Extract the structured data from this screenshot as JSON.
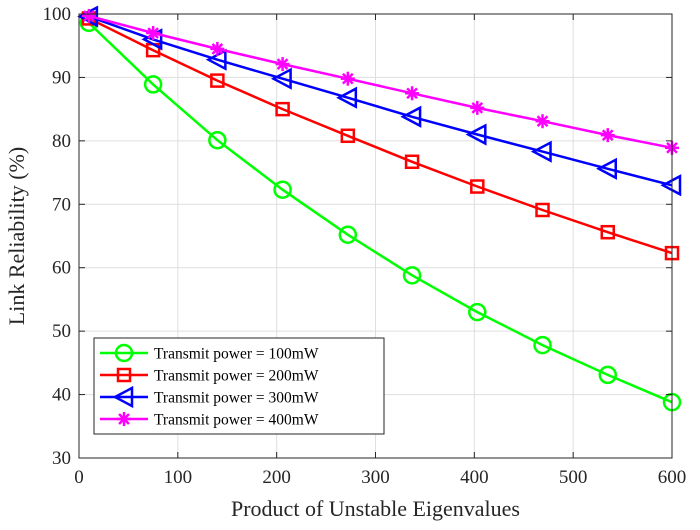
{
  "chart_data": {
    "type": "line",
    "title": "",
    "xlabel": "Product of Unstable Eigenvalues",
    "ylabel": "Link Reliability (%)",
    "xlim": [
      0,
      600
    ],
    "ylim": [
      30,
      100
    ],
    "xticks": [
      0,
      100,
      200,
      300,
      400,
      500,
      600
    ],
    "yticks": [
      30,
      40,
      50,
      60,
      70,
      80,
      90,
      100
    ],
    "grid": true,
    "legend_position": "bottom-left",
    "x": [
      10,
      75,
      140,
      206,
      272,
      337,
      403,
      469,
      535,
      600
    ],
    "series": [
      {
        "name": "Transmit power = 100mW",
        "color": "#00ff00",
        "marker": "circle",
        "values": [
          98.6,
          88.9,
          80.1,
          72.3,
          65.2,
          58.8,
          53.0,
          47.8,
          43.1,
          38.8
        ]
      },
      {
        "name": "Transmit power = 200mW",
        "color": "#ff0000",
        "marker": "square",
        "values": [
          99.3,
          94.3,
          89.5,
          85.0,
          80.8,
          76.7,
          72.8,
          69.1,
          65.6,
          62.3
        ]
      },
      {
        "name": "Transmit power = 300mW",
        "color": "#0000ff",
        "marker": "triangle-left",
        "values": [
          99.6,
          96.0,
          92.8,
          89.8,
          86.8,
          83.8,
          81.0,
          78.3,
          75.6,
          73.0
        ]
      },
      {
        "name": "Transmit power = 400mW",
        "color": "#ff00ff",
        "marker": "asterisk",
        "values": [
          99.7,
          97.0,
          94.5,
          92.1,
          89.8,
          87.5,
          85.2,
          83.1,
          80.9,
          78.9
        ]
      }
    ]
  }
}
